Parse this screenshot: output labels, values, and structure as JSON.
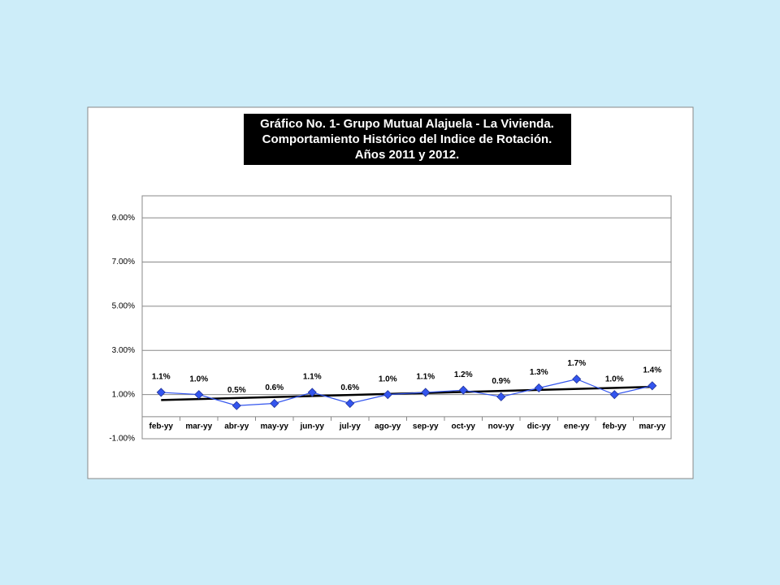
{
  "chart_data": {
    "type": "line",
    "title": [
      "Gráfico No. 1- Grupo Mutual Alajuela - La Vivienda.",
      "Comportamiento Histórico del Indice de Rotación.",
      "Años 2011 y 2012."
    ],
    "categories": [
      "feb-yy",
      "mar-yy",
      "abr-yy",
      "may-yy",
      "jun-yy",
      "jul-yy",
      "ago-yy",
      "sep-yy",
      "oct-yy",
      "nov-yy",
      "dic-yy",
      "ene-yy",
      "feb-yy",
      "mar-yy"
    ],
    "series": [
      {
        "color": "#3355ee",
        "values": [
          1.1,
          1.0,
          0.5,
          0.6,
          1.1,
          0.6,
          1.0,
          1.1,
          1.2,
          0.9,
          1.3,
          1.7,
          1.0,
          1.4
        ],
        "value_labels": [
          "1.1%",
          "1.0%",
          "0.5%",
          "0.6%",
          "1.1%",
          "0.6%",
          "1.0%",
          "1.1%",
          "1.2%",
          "0.9%",
          "1.3%",
          "1.7%",
          "1.0%",
          "1.4%"
        ]
      }
    ],
    "trendline": {
      "color": "#000000",
      "values": [
        0.75,
        1.35
      ]
    },
    "ylim": [
      -1,
      10
    ],
    "yticks": [
      {
        "value": -1,
        "label": "-1.00%"
      },
      {
        "value": 1,
        "label": "1.00%"
      },
      {
        "value": 3,
        "label": "3.00%"
      },
      {
        "value": 5,
        "label": "5.00%"
      },
      {
        "value": 7,
        "label": "7.00%"
      },
      {
        "value": 9,
        "label": "9.00%"
      }
    ],
    "grid": true
  }
}
